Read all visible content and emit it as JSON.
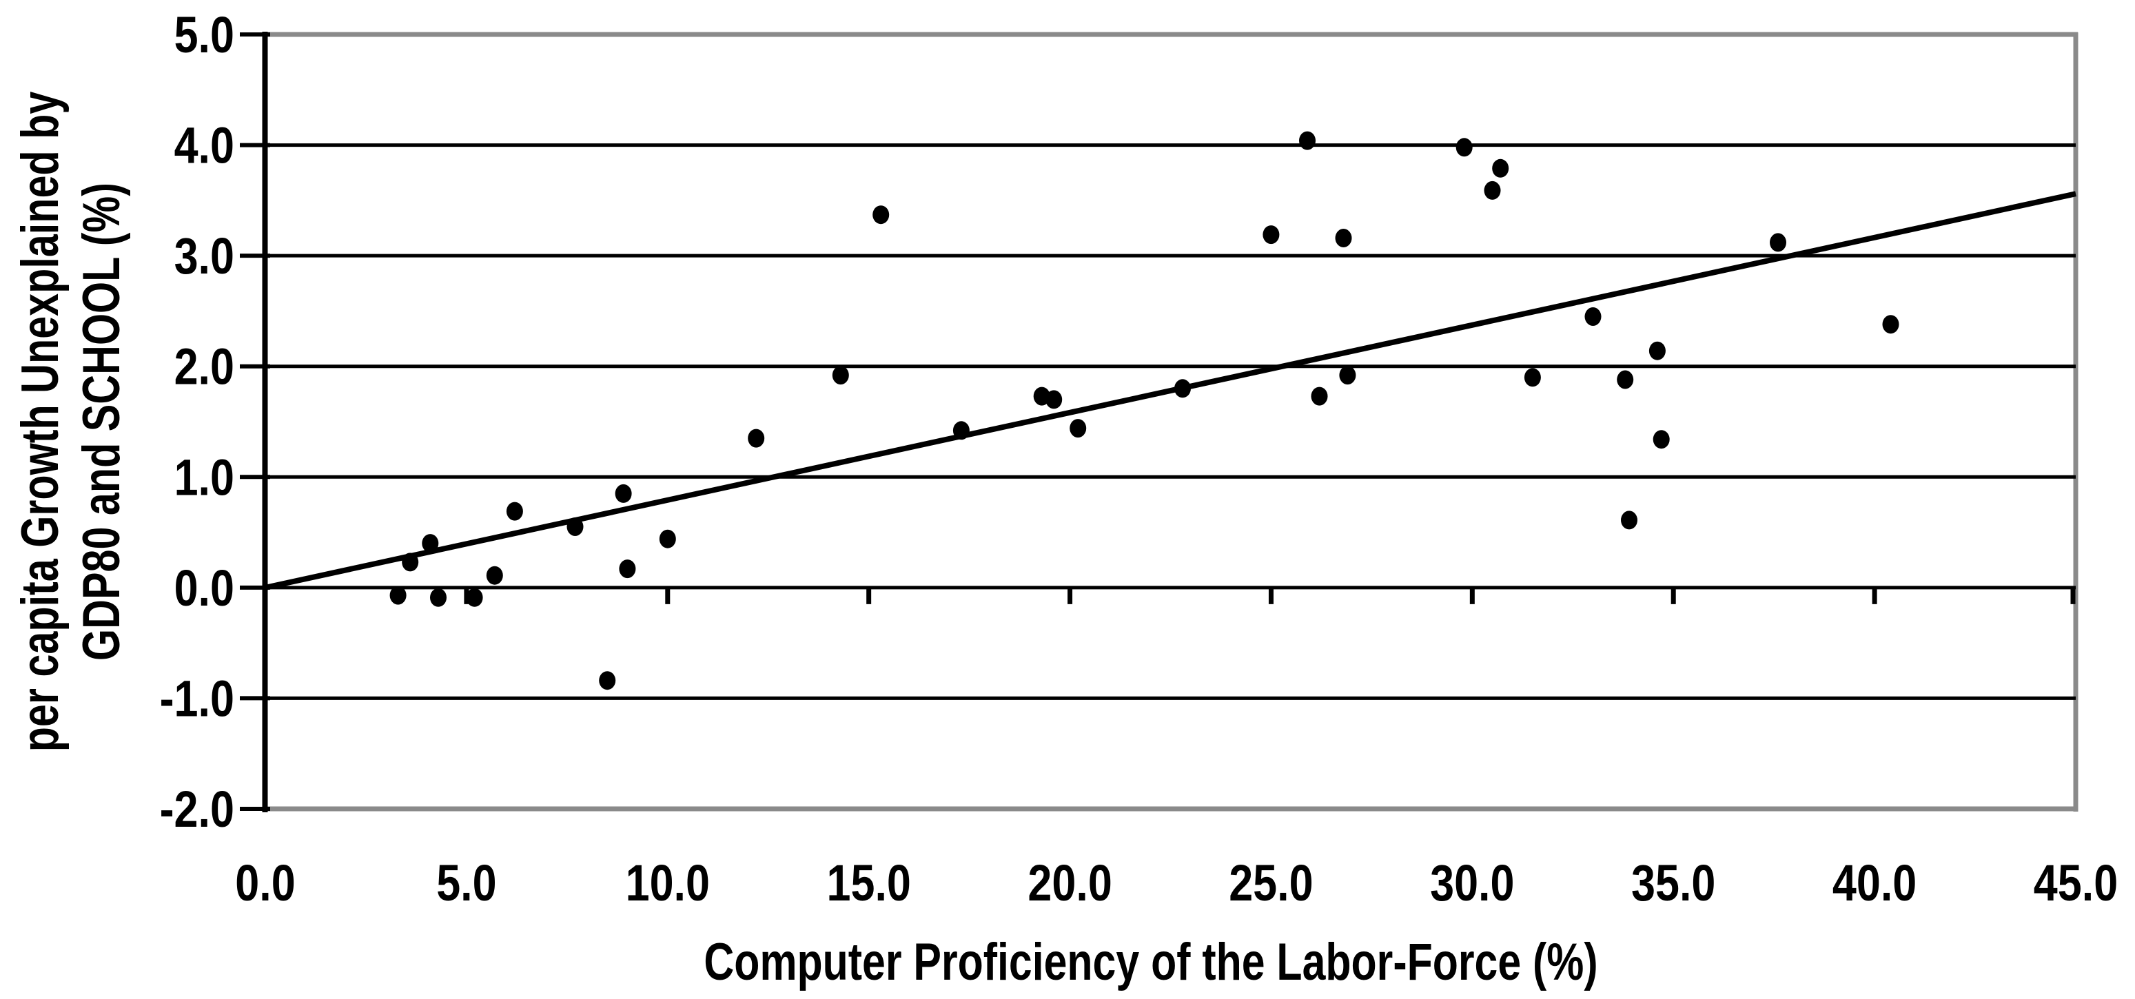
{
  "figure": {
    "background": "#ffffff"
  },
  "chart_data": {
    "type": "scatter",
    "title": "",
    "xlabel": "Computer Proficiency of the Labor-Force (%)",
    "ylabel_line1": "per capita Growth Unexplained by",
    "ylabel_line2": "GDP80 and SCHOOL (%)",
    "xlim": [
      0.0,
      45.0
    ],
    "ylim": [
      -2.0,
      5.0
    ],
    "x_tick_values": [
      0,
      5,
      10,
      15,
      20,
      25,
      30,
      35,
      40,
      45
    ],
    "x_tick_labels": [
      "0.0",
      "5.0",
      "10.0",
      "15.0",
      "20.0",
      "25.0",
      "30.0",
      "35.0",
      "40.0",
      "45.0"
    ],
    "y_tick_values": [
      5,
      4,
      3,
      2,
      1,
      0,
      -1,
      -2
    ],
    "y_tick_labels": [
      "5.0",
      "4.0",
      "3.0",
      "2.0",
      "1.0",
      "0.0",
      "-1.0",
      "-2.0"
    ],
    "gridlines": "horizontal",
    "legend": "none",
    "axis_color": "#000000",
    "gridline_color": "#000000",
    "frame_shadow_color": "#8a8a8a",
    "marker": {
      "shape": "ellipse",
      "color": "#000000"
    },
    "trendline": {
      "x1": 0.0,
      "y1": 0.0,
      "x2": 45.0,
      "y2": 3.56,
      "color": "#000000"
    },
    "points": [
      [
        3.3,
        -0.07
      ],
      [
        3.6,
        0.23
      ],
      [
        4.1,
        0.4
      ],
      [
        4.3,
        -0.09
      ],
      [
        5.2,
        -0.09
      ],
      [
        5.7,
        0.11
      ],
      [
        6.2,
        0.69
      ],
      [
        7.7,
        0.55
      ],
      [
        8.5,
        -0.84
      ],
      [
        8.9,
        0.85
      ],
      [
        9.0,
        0.17
      ],
      [
        10.0,
        0.44
      ],
      [
        12.2,
        1.35
      ],
      [
        14.3,
        1.92
      ],
      [
        15.3,
        3.37
      ],
      [
        17.3,
        1.42
      ],
      [
        19.3,
        1.73
      ],
      [
        19.6,
        1.7
      ],
      [
        20.2,
        1.44
      ],
      [
        22.8,
        1.8
      ],
      [
        25.0,
        3.19
      ],
      [
        25.9,
        4.04
      ],
      [
        26.2,
        1.73
      ],
      [
        26.8,
        3.16
      ],
      [
        26.9,
        1.92
      ],
      [
        29.8,
        3.98
      ],
      [
        30.5,
        3.59
      ],
      [
        30.7,
        3.79
      ],
      [
        31.5,
        1.9
      ],
      [
        33.0,
        2.45
      ],
      [
        33.8,
        1.88
      ],
      [
        33.9,
        0.61
      ],
      [
        34.6,
        2.14
      ],
      [
        34.7,
        1.34
      ],
      [
        37.6,
        3.12
      ],
      [
        40.4,
        2.38
      ]
    ]
  }
}
